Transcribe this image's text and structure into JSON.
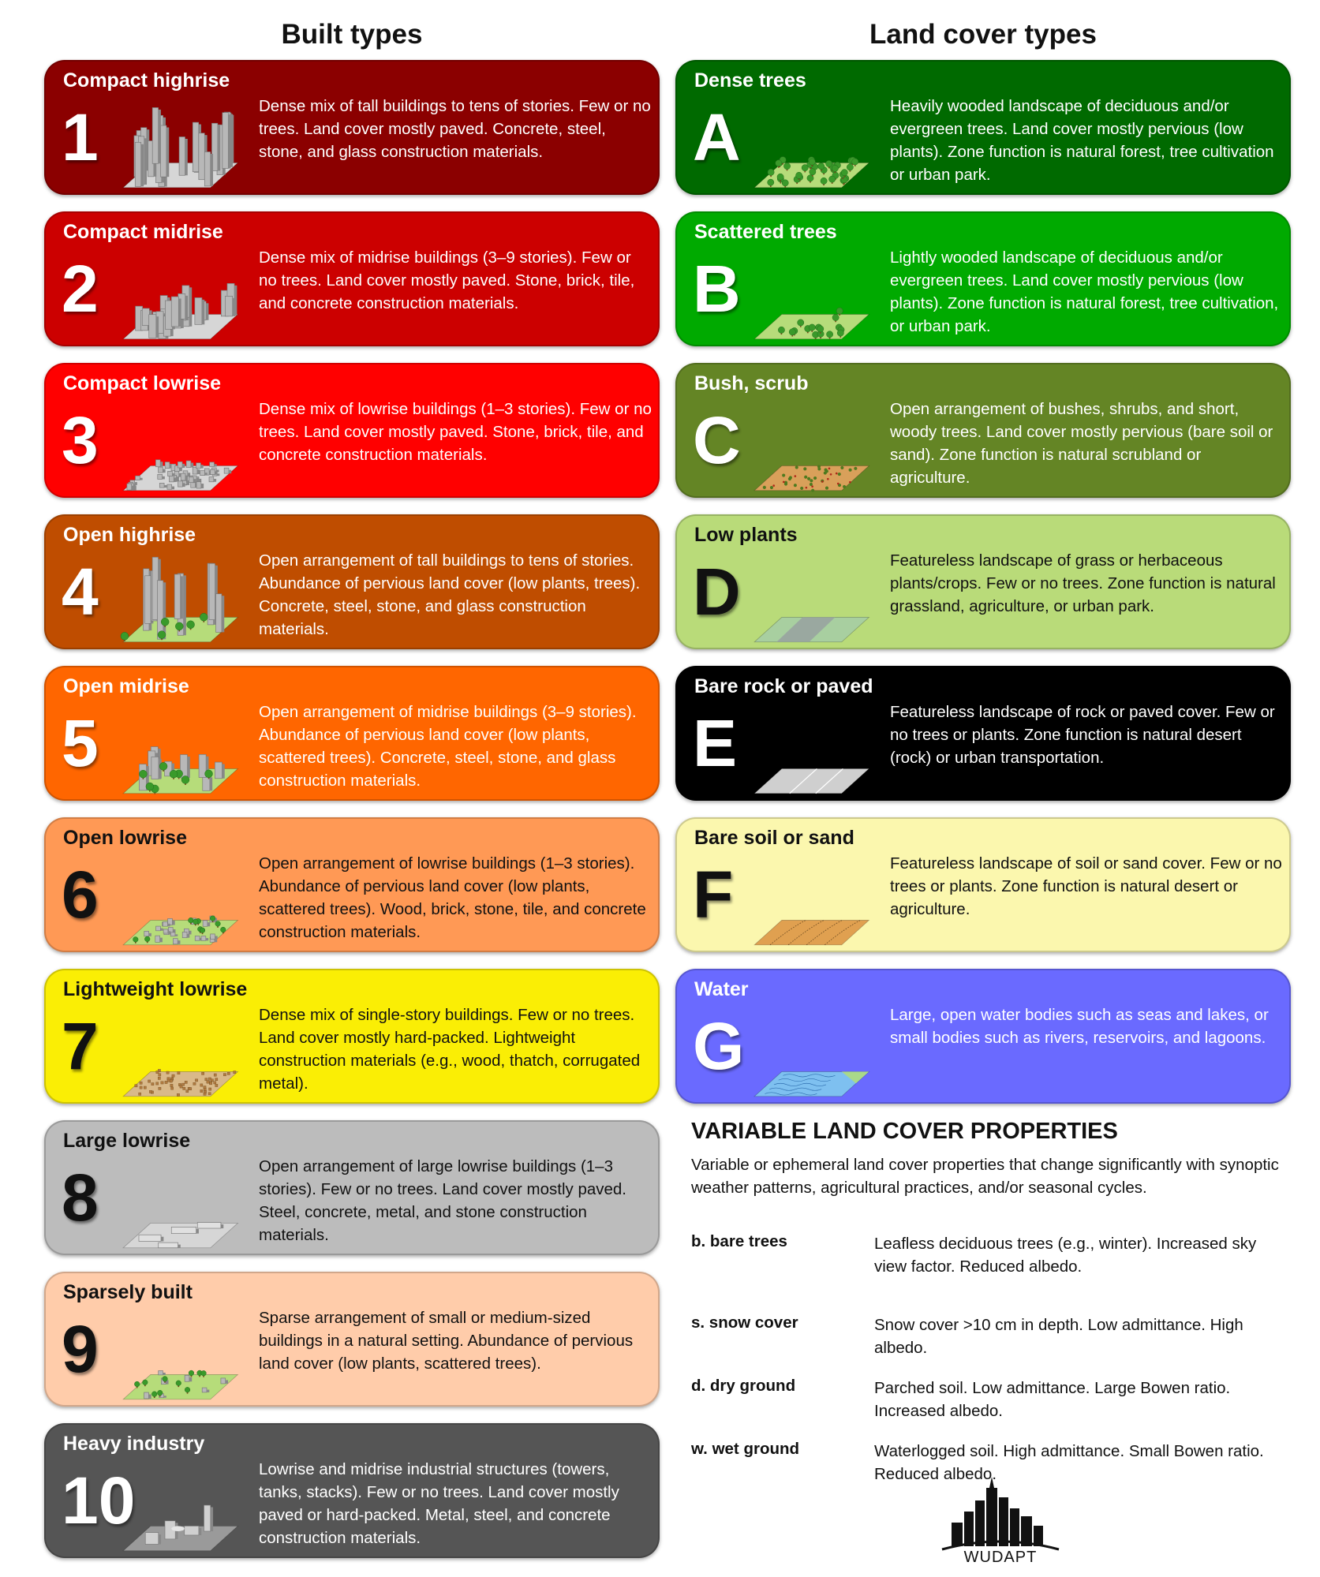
{
  "headings": {
    "built": "Built types",
    "land": "Land cover types"
  },
  "built_types": [
    {
      "code": "1",
      "title": "Compact highrise",
      "description": "Dense mix of tall buildings to tens of stories. Few or no trees. Land cover mostly paved. Concrete, steel, stone, and glass construction materials.",
      "bg": "#8B0000",
      "fg": "#ffffff",
      "illustration": "compact-highrise-illustration"
    },
    {
      "code": "2",
      "title": "Compact midrise",
      "description": "Dense mix of midrise buildings (3–9 stories). Few or no trees. Land cover mostly paved. Stone, brick, tile, and concrete construction materials.",
      "bg": "#CC0000",
      "fg": "#ffffff",
      "illustration": "compact-midrise-illustration"
    },
    {
      "code": "3",
      "title": "Compact lowrise",
      "description": "Dense mix of lowrise buildings (1–3 stories). Few or no trees. Land cover mostly paved. Stone, brick, tile, and concrete construction materials.",
      "bg": "#FF0000",
      "fg": "#ffffff",
      "illustration": "compact-lowrise-illustration"
    },
    {
      "code": "4",
      "title": "Open highrise",
      "description": "Open arrangement of tall buildings to tens of stories. Abundance of pervious land cover (low plants, trees). Concrete, steel, stone, and glass construction materials.",
      "bg": "#BF4D00",
      "fg": "#ffffff",
      "illustration": "open-highrise-illustration"
    },
    {
      "code": "5",
      "title": "Open midrise",
      "description": "Open arrangement of midrise buildings (3–9 stories). Abundance of pervious land cover (low plants, scattered trees). Concrete, steel, stone, and glass construction materials.",
      "bg": "#FF6600",
      "fg": "#ffffff",
      "illustration": "open-midrise-illustration"
    },
    {
      "code": "6",
      "title": "Open lowrise",
      "description": "Open arrangement of lowrise buildings (1–3 stories). Abundance of pervious land cover (low plants, scattered trees). Wood, brick, stone, tile, and concrete construction materials.",
      "bg": "#FF9955",
      "fg": "#111111",
      "illustration": "open-lowrise-illustration"
    },
    {
      "code": "7",
      "title": "Lightweight lowrise",
      "description": "Dense mix of single-story buildings. Few or no trees. Land cover mostly hard-packed. Lightweight construction materials (e.g., wood, thatch, corrugated metal).",
      "bg": "#FAEE05",
      "fg": "#111111",
      "illustration": "lightweight-lowrise-illustration"
    },
    {
      "code": "8",
      "title": "Large lowrise",
      "description": "Open arrangement of large lowrise buildings (1–3 stories). Few or no trees. Land cover mostly paved. Steel, concrete, metal, and stone construction materials.",
      "bg": "#BCBCBC",
      "fg": "#111111",
      "illustration": "large-lowrise-illustration"
    },
    {
      "code": "9",
      "title": "Sparsely built",
      "description": "Sparse arrangement of small or medium-sized buildings in a natural setting. Abundance of pervious land cover (low plants, scattered trees).",
      "bg": "#FFCCAA",
      "fg": "#111111",
      "illustration": "sparsely-built-illustration"
    },
    {
      "code": "10",
      "title": "Heavy industry",
      "description": "Lowrise and midrise industrial structures (towers, tanks, stacks). Few or no trees. Land cover mostly paved or hard-packed. Metal, steel, and concrete construction materials.",
      "bg": "#555555",
      "fg": "#ffffff",
      "illustration": "heavy-industry-illustration"
    }
  ],
  "land_cover_types": [
    {
      "code": "A",
      "title": "Dense trees",
      "description": "Heavily wooded landscape of deciduous and/or evergreen trees. Land cover mostly pervious (low plants). Zone function is natural forest, tree cultivation or urban park.",
      "bg": "#006A00",
      "fg": "#ffffff",
      "illustration": "dense-trees-illustration"
    },
    {
      "code": "B",
      "title": "Scattered trees",
      "description": "Lightly wooded landscape of deciduous and/or evergreen trees. Land cover mostly pervious (low plants). Zone function is natural forest, tree cultivation, or urban park.",
      "bg": "#00AA00",
      "fg": "#ffffff",
      "illustration": "scattered-trees-illustration"
    },
    {
      "code": "C",
      "title": "Bush, scrub",
      "description": "Open arrangement of bushes, shrubs, and short, woody trees. Land cover mostly pervious (bare soil or sand). Zone function is natural scrubland or agriculture.",
      "bg": "#648525",
      "fg": "#ffffff",
      "illustration": "bush-scrub-illustration"
    },
    {
      "code": "D",
      "title": "Low plants",
      "description": "Featureless landscape of grass or herbaceous plants/crops. Few or no trees. Zone function is natural grassland, agriculture, or urban park.",
      "bg": "#B9DB79",
      "fg": "#111111",
      "illustration": "low-plants-illustration"
    },
    {
      "code": "E",
      "title": "Bare rock or paved",
      "description": "Featureless landscape of rock or paved cover. Few or no trees or plants. Zone function is natural desert (rock) or urban transportation.",
      "bg": "#000000",
      "fg": "#ffffff",
      "illustration": "bare-rock-paved-illustration"
    },
    {
      "code": "F",
      "title": "Bare soil or sand",
      "description": "Featureless landscape of soil or sand cover. Few or no trees or plants. Zone function is natural desert or agriculture.",
      "bg": "#FBF7AE",
      "fg": "#111111",
      "illustration": "bare-soil-sand-illustration"
    },
    {
      "code": "G",
      "title": "Water",
      "description": "Large, open water bodies such as seas and lakes, or small bodies such as rivers, reservoirs, and lagoons.",
      "bg": "#6A6AFF",
      "fg": "#ffffff",
      "illustration": "water-illustration"
    }
  ],
  "variable_properties": {
    "title": "VARIABLE LAND COVER PROPERTIES",
    "intro": "Variable or ephemeral land cover properties that change significantly with synoptic weather patterns, agricultural practices, and/or seasonal cycles.",
    "items": [
      {
        "label": "b. bare trees",
        "description": "Leafless deciduous trees (e.g., winter). Increased sky view factor. Reduced albedo."
      },
      {
        "label": "s. snow cover",
        "description": "Snow cover >10 cm in depth. Low admittance. High albedo."
      },
      {
        "label": "d. dry ground",
        "description": "Parched soil. Low admittance. Large Bowen ratio. Increased albedo."
      },
      {
        "label": "w. wet ground",
        "description": "Waterlogged soil. High admittance. Small Bowen ratio. Reduced albedo."
      }
    ]
  },
  "logo": {
    "text": "WUDAPT",
    "icon": "city-skyline-icon"
  }
}
